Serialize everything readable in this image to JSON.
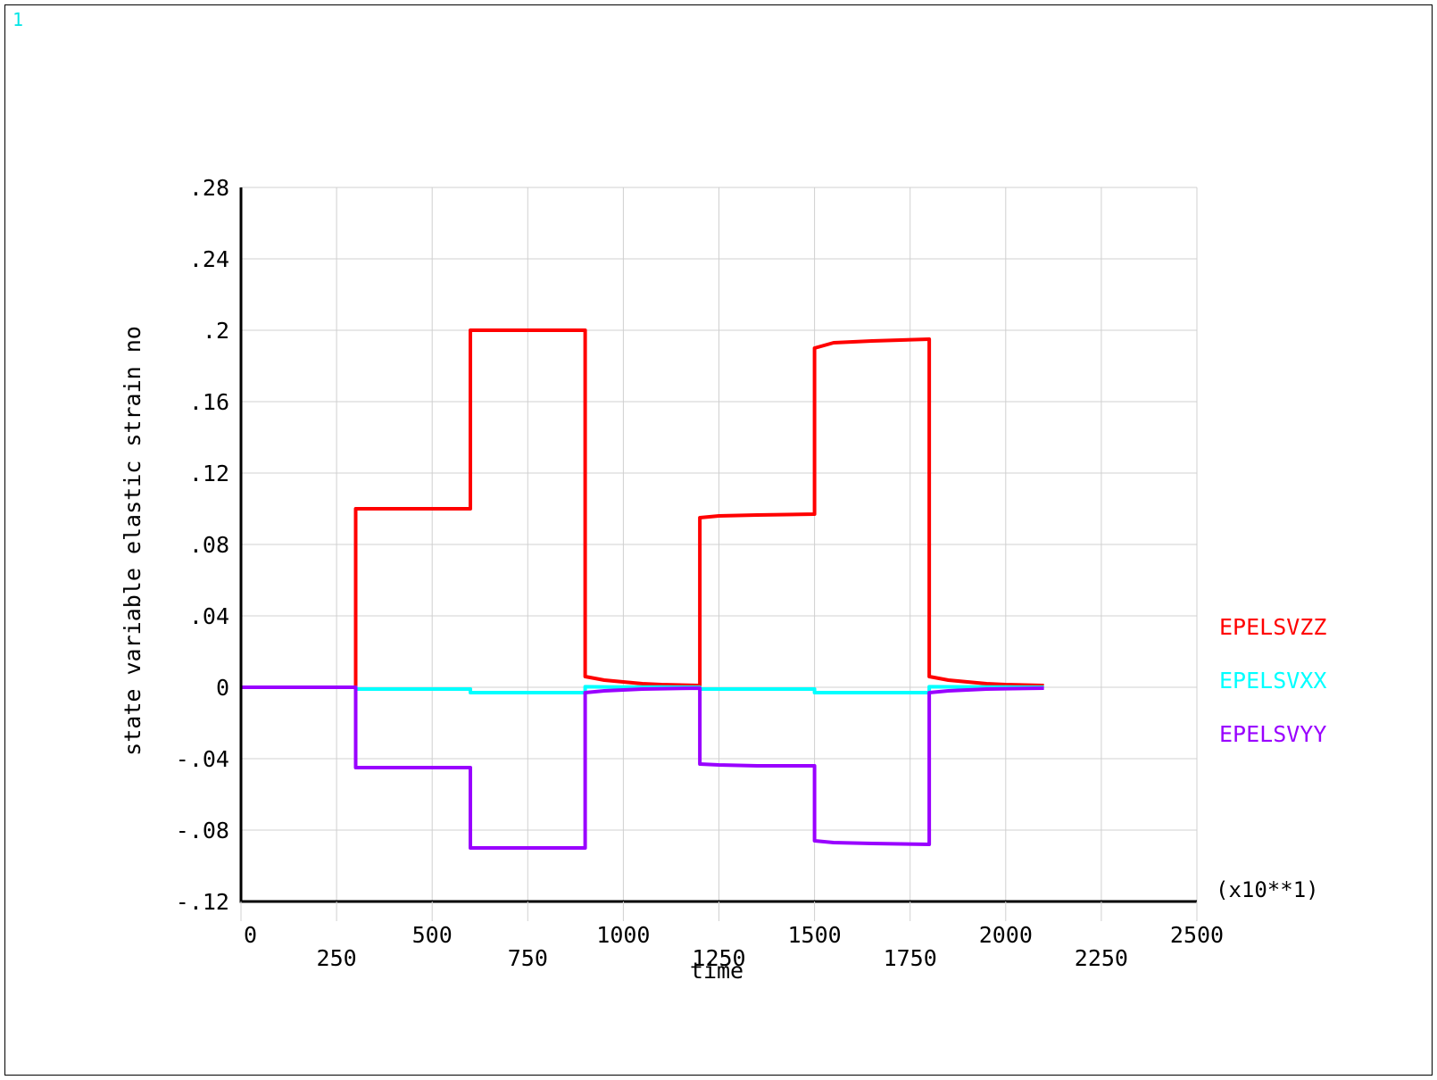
{
  "window_number": "1",
  "colors": {
    "background": "#ffffff",
    "grid": "#d0d0d0",
    "axis": "#000000",
    "window_number": "#00e5e5"
  },
  "chart_data": {
    "type": "line",
    "title": "",
    "xlabel": "time",
    "ylabel": "state variable elastic strain no",
    "x_multiplier_label": "(x10**1)",
    "xlim": [
      0,
      2500
    ],
    "ylim": [
      -0.12,
      0.28
    ],
    "x_ticks": [
      0,
      250,
      500,
      750,
      1000,
      1250,
      1500,
      1750,
      2000,
      2250,
      2500
    ],
    "x_tick_labels": [
      "0",
      "250",
      "500",
      "750",
      "1000",
      "1250",
      "1500",
      "1750",
      "2000",
      "2250",
      "2500"
    ],
    "y_ticks": [
      -0.12,
      -0.08,
      -0.04,
      0,
      0.04,
      0.08,
      0.12,
      0.16,
      0.2,
      0.24,
      0.28
    ],
    "y_tick_labels": [
      "-.12",
      "-.08",
      "-.04",
      "0",
      ".04",
      ".08",
      ".12",
      ".16",
      ".2",
      ".24",
      ".28"
    ],
    "grid": true,
    "legend_position": "right",
    "series": [
      {
        "name": "EPELSVZZ",
        "color": "#ff0000",
        "x": [
          0,
          300,
          300,
          600,
          600,
          900,
          900,
          950,
          1000,
          1050,
          1100,
          1200,
          1200,
          1250,
          1350,
          1500,
          1500,
          1550,
          1650,
          1800,
          1800,
          1850,
          1900,
          1950,
          2000,
          2100
        ],
        "y": [
          0,
          0,
          0.1,
          0.1,
          0.2,
          0.2,
          0.006,
          0.004,
          0.003,
          0.002,
          0.0015,
          0.001,
          0.095,
          0.096,
          0.0965,
          0.097,
          0.19,
          0.193,
          0.194,
          0.195,
          0.006,
          0.004,
          0.003,
          0.002,
          0.0015,
          0.001
        ]
      },
      {
        "name": "EPELSVXX",
        "color": "#00ffff",
        "x": [
          0,
          300,
          300,
          600,
          600,
          900,
          900,
          950,
          1000,
          1100,
          1200,
          1200,
          1350,
          1500,
          1500,
          1650,
          1800,
          1800,
          1900,
          2000,
          2100
        ],
        "y": [
          0,
          0,
          -0.001,
          -0.001,
          -0.003,
          -0.003,
          0.0003,
          0.0002,
          0.0001,
          0.0001,
          0,
          -0.001,
          -0.001,
          -0.001,
          -0.003,
          -0.003,
          -0.003,
          0.0003,
          0.0002,
          0.0001,
          0
        ]
      },
      {
        "name": "EPELSVYY",
        "color": "#9900ff",
        "x": [
          0,
          300,
          300,
          600,
          600,
          900,
          900,
          950,
          1000,
          1050,
          1100,
          1200,
          1200,
          1250,
          1350,
          1500,
          1500,
          1550,
          1650,
          1800,
          1800,
          1850,
          1900,
          1950,
          2000,
          2100
        ],
        "y": [
          0,
          0,
          -0.045,
          -0.045,
          -0.09,
          -0.09,
          -0.003,
          -0.002,
          -0.0015,
          -0.001,
          -0.0008,
          -0.0005,
          -0.043,
          -0.0435,
          -0.044,
          -0.044,
          -0.086,
          -0.087,
          -0.0875,
          -0.088,
          -0.003,
          -0.002,
          -0.0015,
          -0.001,
          -0.0008,
          -0.0005
        ]
      }
    ]
  }
}
